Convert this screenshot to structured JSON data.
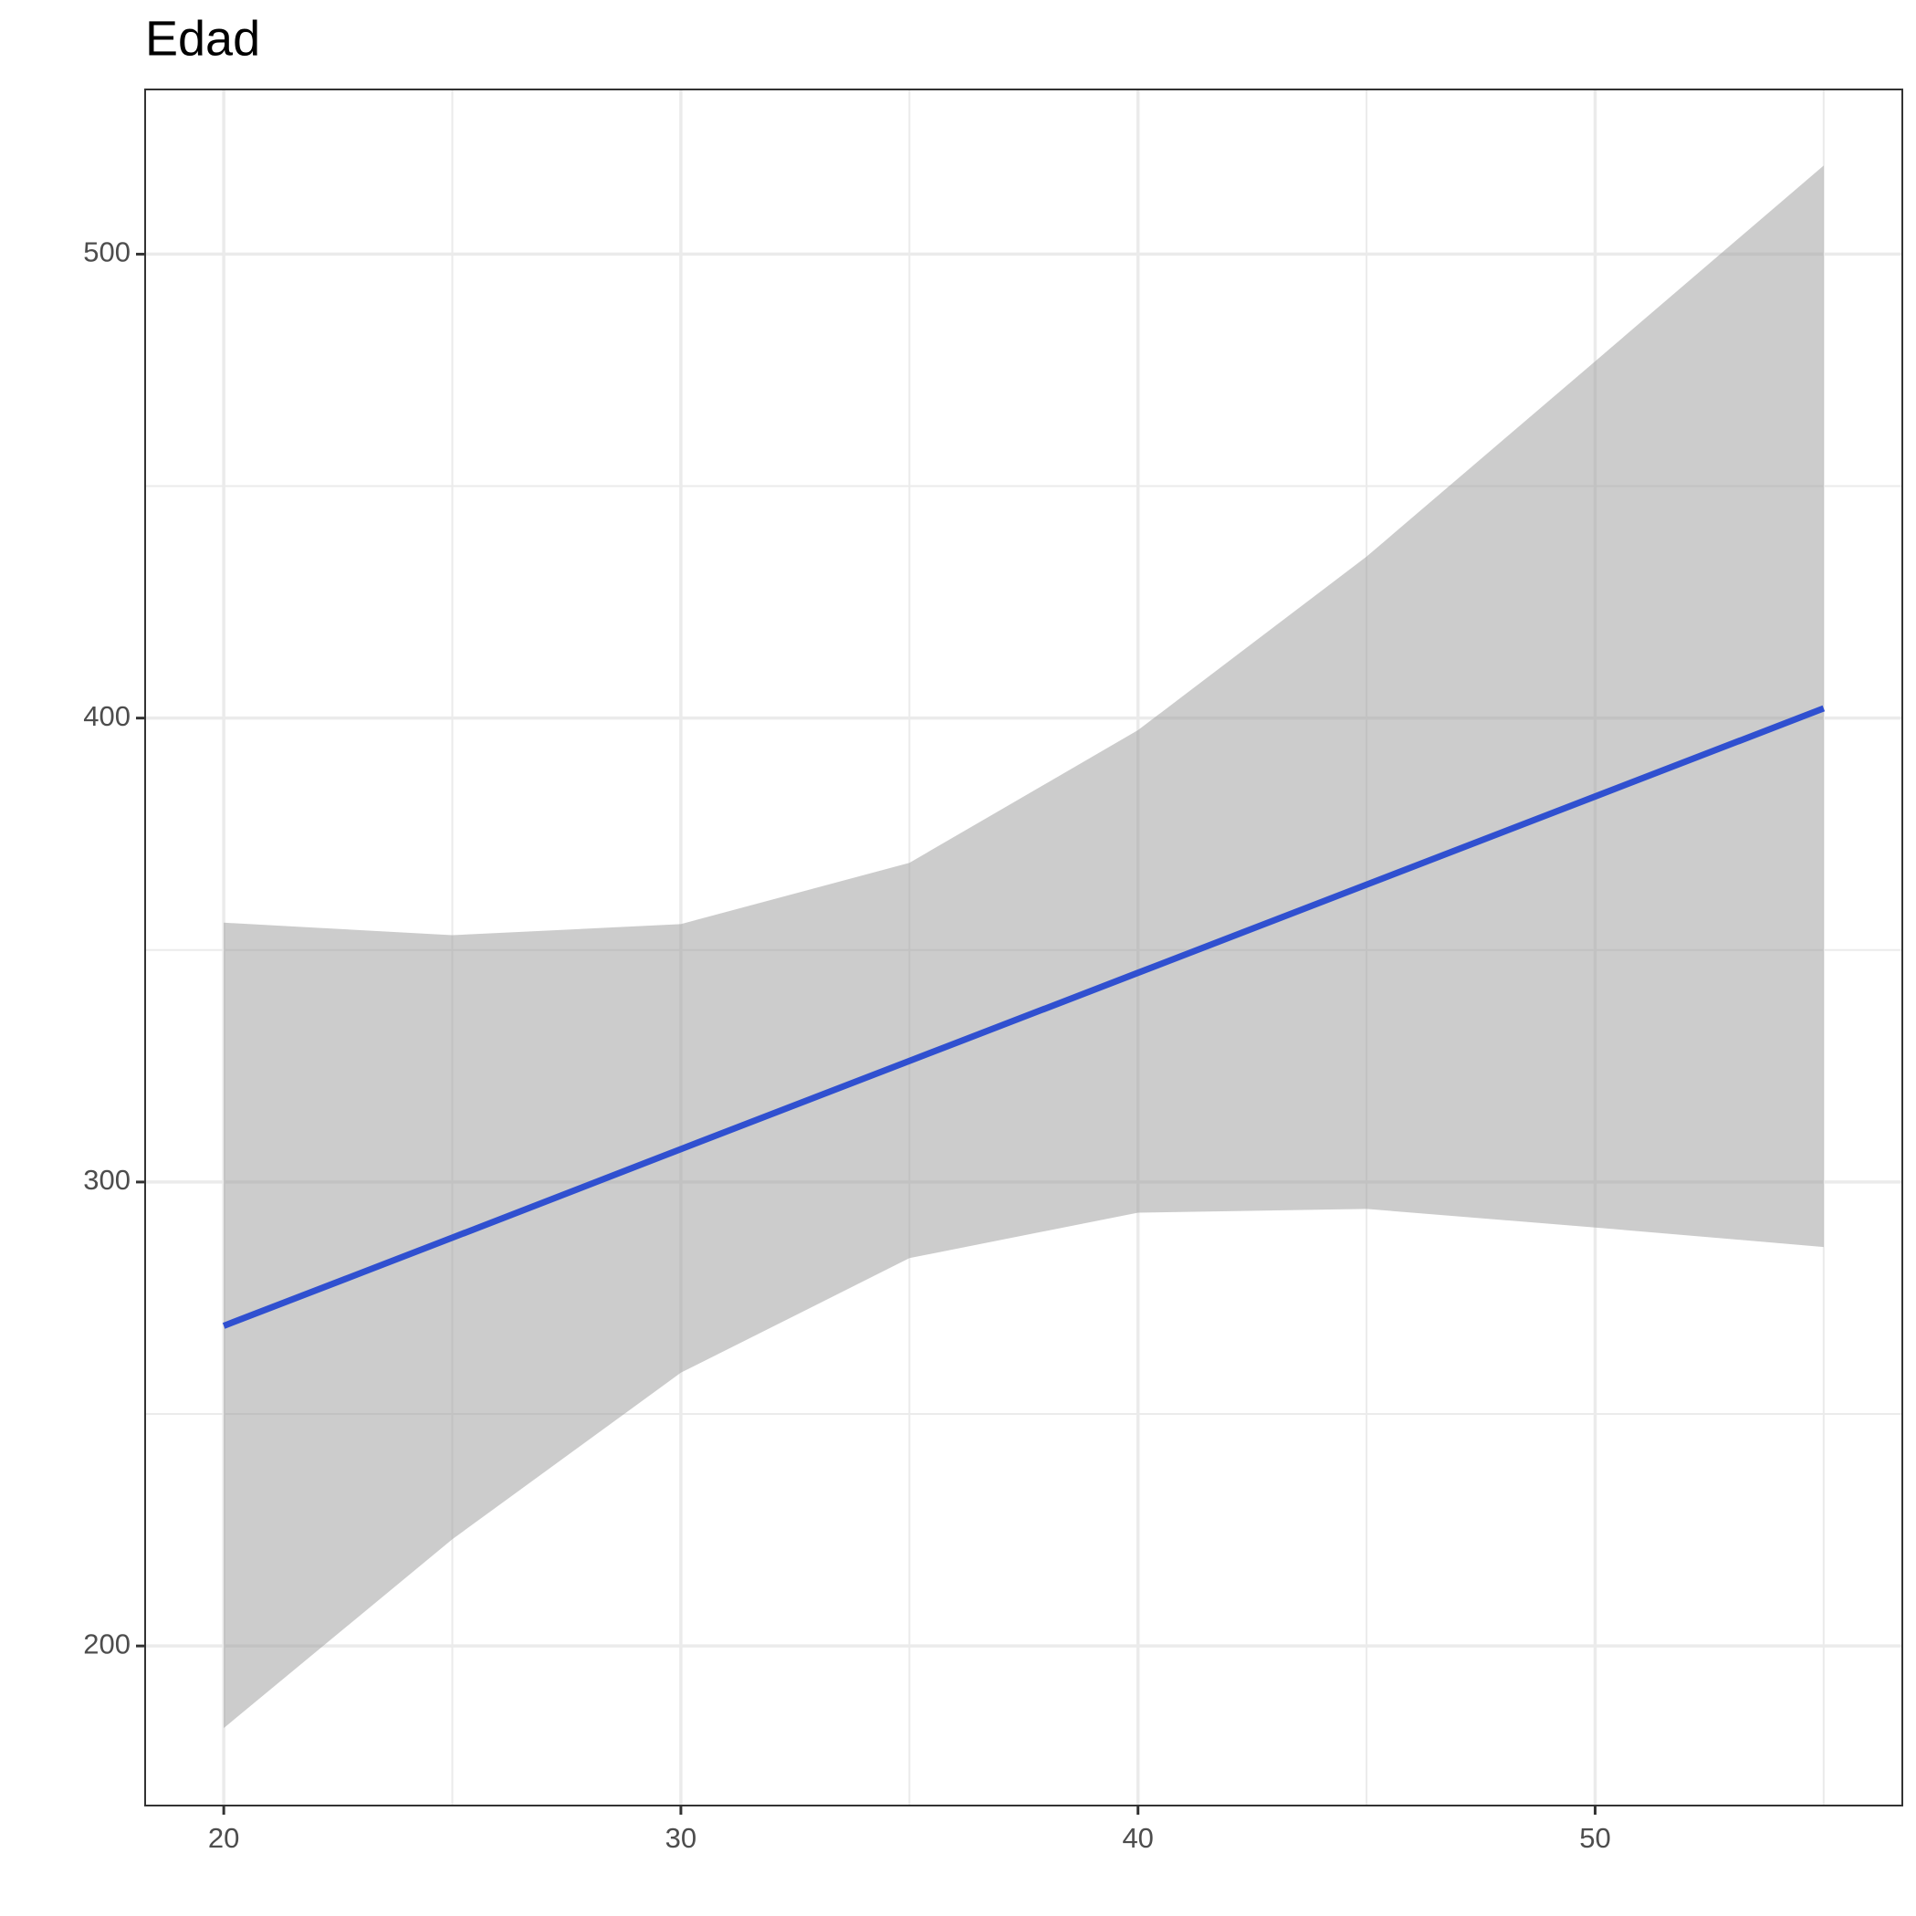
{
  "chart_data": {
    "type": "line",
    "title": "Edad",
    "x": [
      20,
      25,
      30,
      35,
      40,
      45,
      50,
      55
    ],
    "values": [
      269.0,
      288.0,
      307.1,
      326.1,
      345.1,
      364.1,
      383.1,
      402.1
    ],
    "color": "#3050d0",
    "band": {
      "lower": [
        182.3,
        223.0,
        258.9,
        283.6,
        293.4,
        294.2,
        290.2,
        286.0
      ],
      "upper": [
        355.9,
        353.2,
        355.6,
        368.8,
        397.4,
        434.8,
        476.9,
        519.1
      ],
      "color": "#999999",
      "opacity": 0.5
    },
    "xlim": [
      18.28,
      56.72
    ],
    "ylim": [
      165.6,
      535.5
    ],
    "xticks": [
      20,
      30,
      40,
      50
    ],
    "yticks": [
      200,
      300,
      400,
      500
    ],
    "minor_xticks": [
      25,
      35,
      45,
      55
    ],
    "minor_yticks": [
      250,
      350,
      450
    ],
    "grid": true
  }
}
